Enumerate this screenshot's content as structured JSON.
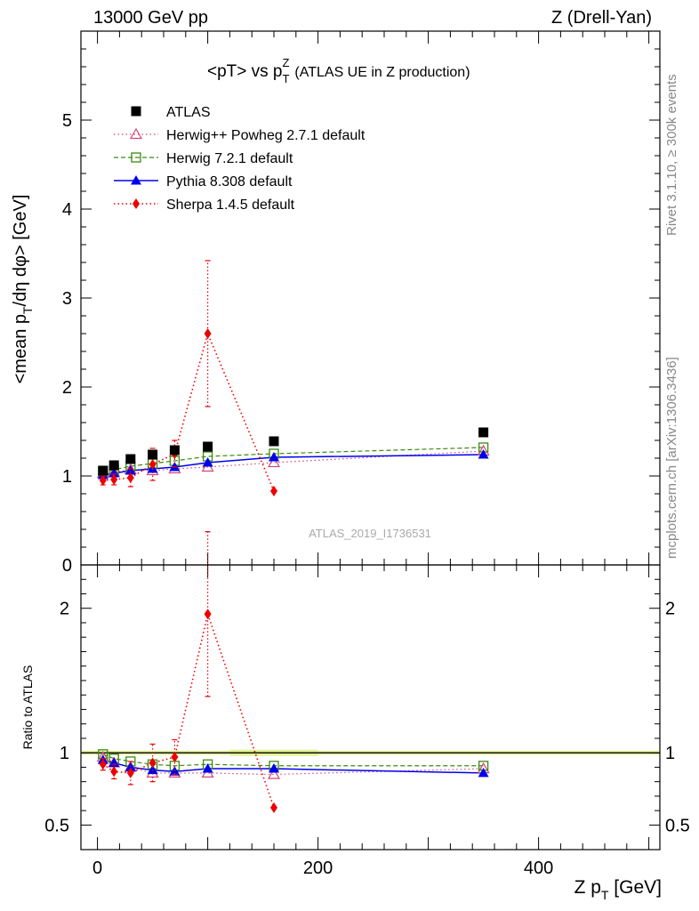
{
  "header": {
    "left": "13000 GeV pp",
    "right": "Z (Drell-Yan)"
  },
  "side_labels": {
    "rivet": "Rivet 3.1.10, ≥ 300k events",
    "mcplots": "mcplots.cern.ch [arXiv:1306.3436]"
  },
  "watermark": "ATLAS_2019_I1736531",
  "colors": {
    "atlas": "#000000",
    "herwigpp": "#d04878",
    "herwig7": "#3a8a10",
    "pythia": "#0000ee",
    "sherpa": "#ee0000",
    "band": "#e8f5a0"
  },
  "chart_data": [
    {
      "type": "scatter",
      "panel": "main",
      "title_main": "<pT> vs p",
      "title_sup": "Z",
      "title_sub": "T",
      "title_extra": "(ATLAS UE in Z production)",
      "ylabel_main": "<mean p",
      "ylabel_sub": "T",
      "ylabel_rest": "/dη dφ> [GeV]",
      "xlim": [
        -15,
        510
      ],
      "ylim": [
        0,
        6
      ],
      "yticks": [
        0,
        1,
        2,
        3,
        4,
        5
      ],
      "ytick_labels": [
        "0",
        "1",
        "2",
        "3",
        "4",
        "5"
      ],
      "legend_position": "top-left",
      "x": [
        5,
        15,
        30,
        50,
        70,
        100,
        160,
        350
      ],
      "series": [
        {
          "key": "atlas",
          "name": "ATLAS",
          "marker": "square",
          "line": "none",
          "values": [
            1.06,
            1.12,
            1.19,
            1.24,
            1.29,
            1.33,
            1.39,
            1.49
          ]
        },
        {
          "key": "herwigpp",
          "name": "Herwig++ Powheg 2.7.1 default",
          "marker": "triangle-open",
          "line": "dotted",
          "values": [
            1.03,
            1.04,
            1.07,
            1.06,
            1.08,
            1.1,
            1.15,
            1.28
          ]
        },
        {
          "key": "herwig7",
          "name": "Herwig 7.2.1 default",
          "marker": "square-open",
          "line": "dashed",
          "values": [
            1.05,
            1.07,
            1.11,
            1.14,
            1.17,
            1.22,
            1.25,
            1.32
          ]
        },
        {
          "key": "pythia",
          "name": "Pythia 8.308 default",
          "marker": "triangle",
          "line": "solid",
          "values": [
            1.01,
            1.03,
            1.06,
            1.08,
            1.1,
            1.15,
            1.21,
            1.24
          ]
        },
        {
          "key": "sherpa",
          "name": "Sherpa 1.4.5 default",
          "marker": "diamond",
          "line": "dotted",
          "values": [
            0.95,
            0.96,
            0.98,
            1.13,
            1.25,
            2.6,
            0.83,
            null
          ],
          "err": [
            0.05,
            0.06,
            0.1,
            0.18,
            0.15,
            0.82,
            0.0,
            null
          ]
        }
      ]
    },
    {
      "type": "scatter",
      "panel": "ratio",
      "ylabel": "Ratio to ATLAS",
      "xlabel_main": "Z p",
      "xlabel_sub": "T",
      "xlabel_rest": " [GeV]",
      "xlim": [
        -15,
        510
      ],
      "ylim": [
        0.33,
        2.3
      ],
      "yticks": [
        0.5,
        1,
        2
      ],
      "ytick_labels": [
        "0.5",
        "1",
        "2"
      ],
      "xticks": [
        0,
        200,
        400
      ],
      "xtick_labels": [
        "0",
        "200",
        "400"
      ],
      "reference": 1.0,
      "x": [
        5,
        15,
        30,
        50,
        70,
        100,
        160,
        350
      ],
      "series": [
        {
          "key": "herwigpp",
          "values": [
            0.97,
            0.93,
            0.9,
            0.86,
            0.86,
            0.86,
            0.85,
            0.89
          ]
        },
        {
          "key": "herwig7",
          "values": [
            0.99,
            0.96,
            0.94,
            0.92,
            0.91,
            0.92,
            0.91,
            0.91
          ]
        },
        {
          "key": "pythia",
          "values": [
            0.95,
            0.93,
            0.9,
            0.88,
            0.87,
            0.89,
            0.89,
            0.86
          ]
        },
        {
          "key": "sherpa",
          "values": [
            0.92,
            0.87,
            0.86,
            0.93,
            0.97,
            1.96,
            0.62,
            null
          ],
          "err": [
            0.04,
            0.05,
            0.08,
            0.13,
            0.12,
            0.57,
            0.0,
            null
          ]
        }
      ]
    }
  ]
}
